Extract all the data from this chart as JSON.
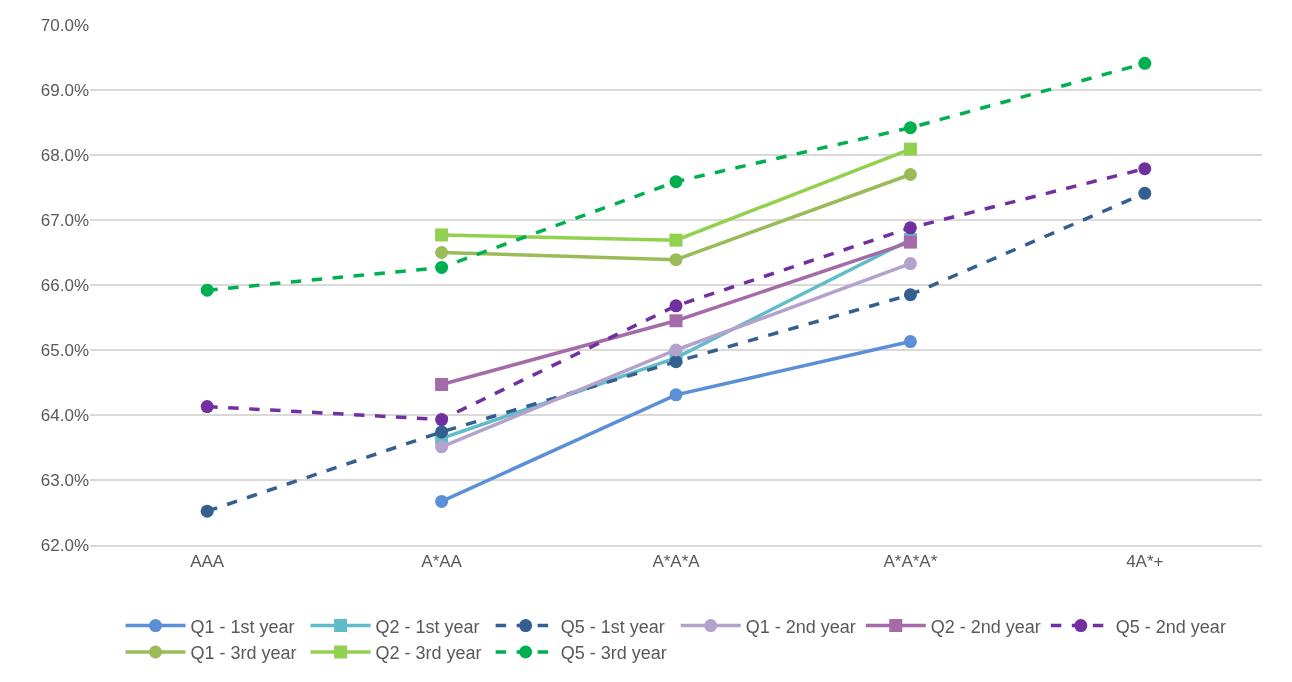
{
  "chart_data": {
    "type": "line",
    "categories": [
      "AAA",
      "A*AA",
      "A*A*A",
      "A*A*A*",
      "4A*+"
    ],
    "series": [
      {
        "name": "Q1 - 1st year",
        "color": "#5b8fd6",
        "marker": "circle",
        "line_style": "solid",
        "values": [
          null,
          62.67,
          64.31,
          65.13,
          null
        ]
      },
      {
        "name": "Q2 - 1st year",
        "color": "#5fbcc8",
        "marker": "square",
        "line_style": "solid",
        "values": [
          null,
          63.64,
          64.88,
          66.7,
          null
        ]
      },
      {
        "name": "Q5 - 1st year",
        "color": "#335f91",
        "marker": "circle",
        "line_style": "dashed",
        "values": [
          62.52,
          63.74,
          64.82,
          65.85,
          67.41
        ]
      },
      {
        "name": "Q1 - 2nd year",
        "color": "#b4a2cc",
        "marker": "circle",
        "line_style": "solid",
        "values": [
          null,
          63.51,
          65.0,
          66.33,
          null
        ]
      },
      {
        "name": "Q2 - 2nd year",
        "color": "#a56aa8",
        "marker": "square",
        "line_style": "solid",
        "values": [
          null,
          64.47,
          65.45,
          66.66,
          null
        ]
      },
      {
        "name": "Q5 - 2nd year",
        "color": "#7030a0",
        "marker": "circle",
        "line_style": "dashed",
        "values": [
          64.13,
          63.93,
          65.68,
          66.88,
          67.79
        ]
      },
      {
        "name": "Q1 - 3rd year",
        "color": "#9bbb59",
        "marker": "circle",
        "line_style": "solid",
        "values": [
          null,
          66.5,
          66.39,
          67.7,
          null
        ]
      },
      {
        "name": "Q2 - 3rd year",
        "color": "#92d050",
        "marker": "square",
        "line_style": "solid",
        "values": [
          null,
          66.77,
          66.69,
          68.09,
          null
        ]
      },
      {
        "name": "Q5 - 3rd year",
        "color": "#00b050",
        "marker": "circle",
        "line_style": "dashed",
        "values": [
          65.92,
          66.27,
          67.59,
          68.42,
          69.41
        ]
      }
    ],
    "ylim": [
      62,
      70
    ],
    "yticks": [
      {
        "value": 62,
        "label": "62.0%"
      },
      {
        "value": 63,
        "label": "63.0%"
      },
      {
        "value": 64,
        "label": "64.0%"
      },
      {
        "value": 65,
        "label": "65.0%"
      },
      {
        "value": 66,
        "label": "66.0%"
      },
      {
        "value": 67,
        "label": "67.0%"
      },
      {
        "value": 68,
        "label": "68.0%"
      },
      {
        "value": 69,
        "label": "69.0%"
      },
      {
        "value": 70,
        "label": "70.0%"
      }
    ],
    "grid": "y",
    "legend": "bottom"
  }
}
